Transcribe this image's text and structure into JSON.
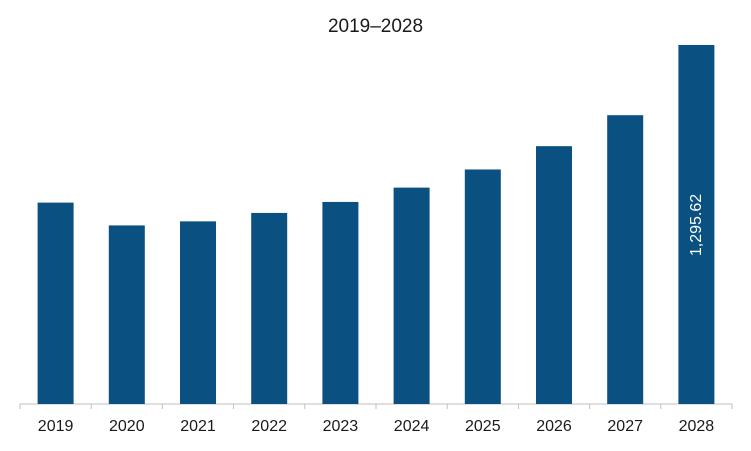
{
  "chart_data": {
    "type": "bar",
    "title": "2019–2028",
    "xlabel": "",
    "ylabel": "",
    "categories": [
      "2019",
      "2020",
      "2021",
      "2022",
      "2023",
      "2024",
      "2025",
      "2026",
      "2027",
      "2028"
    ],
    "values": [
      726.8,
      644.5,
      659.1,
      689.6,
      729.2,
      780.9,
      846.4,
      930.5,
      1042.3,
      1295.62
    ],
    "data_labels": [
      {
        "category": "2028",
        "text": "1,295.62",
        "orientation": "vertical"
      }
    ],
    "ylim": [
      0,
      1295.62
    ],
    "grid": false,
    "legend": "none",
    "colors": {
      "bar": "#0a5080",
      "axis": "#bfbfbf",
      "text": "#1a1a1a",
      "data_label": "#ffffff"
    }
  }
}
